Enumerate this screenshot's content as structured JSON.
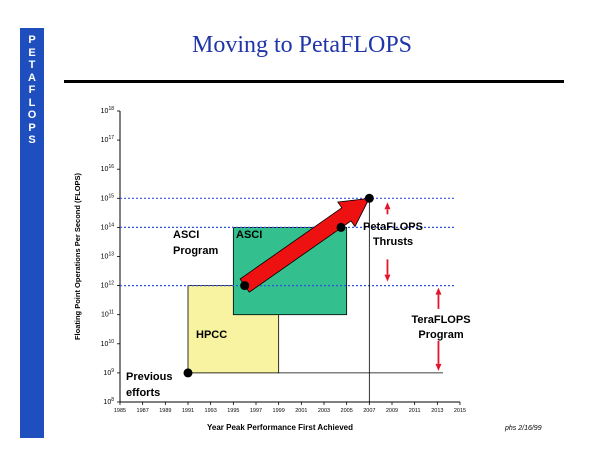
{
  "sidebar": {
    "letters": [
      "P",
      "E",
      "T",
      "A",
      "F",
      "L",
      "O",
      "P",
      "S"
    ]
  },
  "slide": {
    "title": "Moving to PetaFLOPS",
    "footer": "phs 2/16/99"
  },
  "colors": {
    "sidebar": "#1f4fbf",
    "title": "#1f35a8",
    "hpcc": "#f7f3a0",
    "asci": "#33c08e",
    "arrow": "#ee1111",
    "thrust_arrow": "#e4152b",
    "dotted": "#3355dd"
  },
  "chart_data": {
    "type": "scatter",
    "title": "Moving to PetaFLOPS",
    "xlabel": "Year Peak Performance First Achieved",
    "ylabel": "Floating Point Operations Per Second (FLOPS)",
    "x_ticks": [
      "1985",
      "1987",
      "1989",
      "1991",
      "1993",
      "1995",
      "1997",
      "1999",
      "2001",
      "2003",
      "2005",
      "2007",
      "2009",
      "2011",
      "2013",
      "2015"
    ],
    "xlim": [
      1985,
      2015
    ],
    "y_ticks": [
      {
        "base": "10",
        "exp": "8"
      },
      {
        "base": "10",
        "exp": "9"
      },
      {
        "base": "10",
        "exp": "10"
      },
      {
        "base": "10",
        "exp": "11"
      },
      {
        "base": "10",
        "exp": "12"
      },
      {
        "base": "10",
        "exp": "13"
      },
      {
        "base": "10",
        "exp": "14"
      },
      {
        "base": "10",
        "exp": "15"
      },
      {
        "base": "10",
        "exp": "16"
      },
      {
        "base": "10",
        "exp": "17"
      },
      {
        "base": "10",
        "exp": "18"
      }
    ],
    "ylim_log10": [
      8,
      18
    ],
    "reference_lines_log10": [
      15,
      14,
      12
    ],
    "baseline": {
      "x_from": 1999,
      "x_to": 2013.5,
      "y_log10": 9
    },
    "vertical_line": {
      "x": 2007,
      "y_from_log10": 8,
      "y_to_log10": 15
    },
    "regions": [
      {
        "label": "HPCC",
        "x_from": 1991,
        "x_to": 1999,
        "y_from_log10": 9,
        "y_to_log10": 12,
        "color": "#f7f3a0"
      },
      {
        "label": "ASCI",
        "x_from": 1995,
        "x_to": 2005,
        "y_from_log10": 11,
        "y_to_log10": 14,
        "color": "#33c08e"
      }
    ],
    "points": [
      {
        "x": 1991,
        "y_log10": 9
      },
      {
        "x": 1996,
        "y_log10": 12
      },
      {
        "x": 2004.5,
        "y_log10": 14
      },
      {
        "x": 2007,
        "y_log10": 15
      }
    ],
    "trend_arrow": {
      "from_x": 1996,
      "from_y_log10": 12,
      "to_x": 2007,
      "to_y_log10": 15
    },
    "annotations": {
      "previous": [
        "Previous",
        "efforts"
      ],
      "asci_program": [
        "ASCI",
        "Program"
      ],
      "asci_box": "ASCI",
      "hpcc_box": "HPCC",
      "petaflops": [
        "PetaFLOPS",
        "Thrusts"
      ],
      "teraflops": [
        "TeraFLOPS",
        "Program"
      ]
    }
  }
}
